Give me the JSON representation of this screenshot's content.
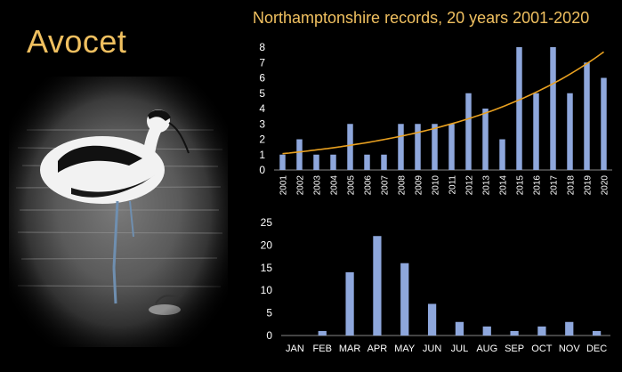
{
  "header": {
    "species": "Avocet",
    "subtitle": "Northamptonshire records, 20 years 2001-2020"
  },
  "colors": {
    "background": "#000000",
    "title": "#f0c060",
    "bar": "#8ea7dc",
    "trend": "#e8a020",
    "axis_text": "#ffffff"
  },
  "photo": {
    "subject": "avocet wading in water"
  },
  "chart_data": [
    {
      "type": "bar",
      "title": "Northamptonshire records, 20 years 2001-2020",
      "categories": [
        "2001",
        "2002",
        "2003",
        "2004",
        "2005",
        "2006",
        "2007",
        "2008",
        "2009",
        "2010",
        "2011",
        "2012",
        "2013",
        "2014",
        "2015",
        "2016",
        "2017",
        "2018",
        "2019",
        "2020"
      ],
      "values": [
        1,
        2,
        1,
        1,
        3,
        1,
        1,
        3,
        3,
        3,
        3,
        5,
        4,
        2,
        8,
        5,
        8,
        5,
        7,
        6
      ],
      "ylim": [
        0,
        8
      ],
      "yticks": [
        0,
        1,
        2,
        3,
        4,
        5,
        6,
        7,
        8
      ],
      "xlabel": "",
      "ylabel": "",
      "trendline": {
        "type": "exponential"
      },
      "grid": false,
      "legend": "none"
    },
    {
      "type": "bar",
      "categories": [
        "JAN",
        "FEB",
        "MAR",
        "APR",
        "MAY",
        "JUN",
        "JUL",
        "AUG",
        "SEP",
        "OCT",
        "NOV",
        "DEC"
      ],
      "values": [
        0,
        1,
        14,
        22,
        16,
        7,
        3,
        2,
        1,
        2,
        3,
        1
      ],
      "ylim": [
        0,
        25
      ],
      "yticks": [
        0,
        5,
        10,
        15,
        20,
        25
      ],
      "xlabel": "",
      "ylabel": "",
      "grid": false,
      "legend": "none"
    }
  ]
}
